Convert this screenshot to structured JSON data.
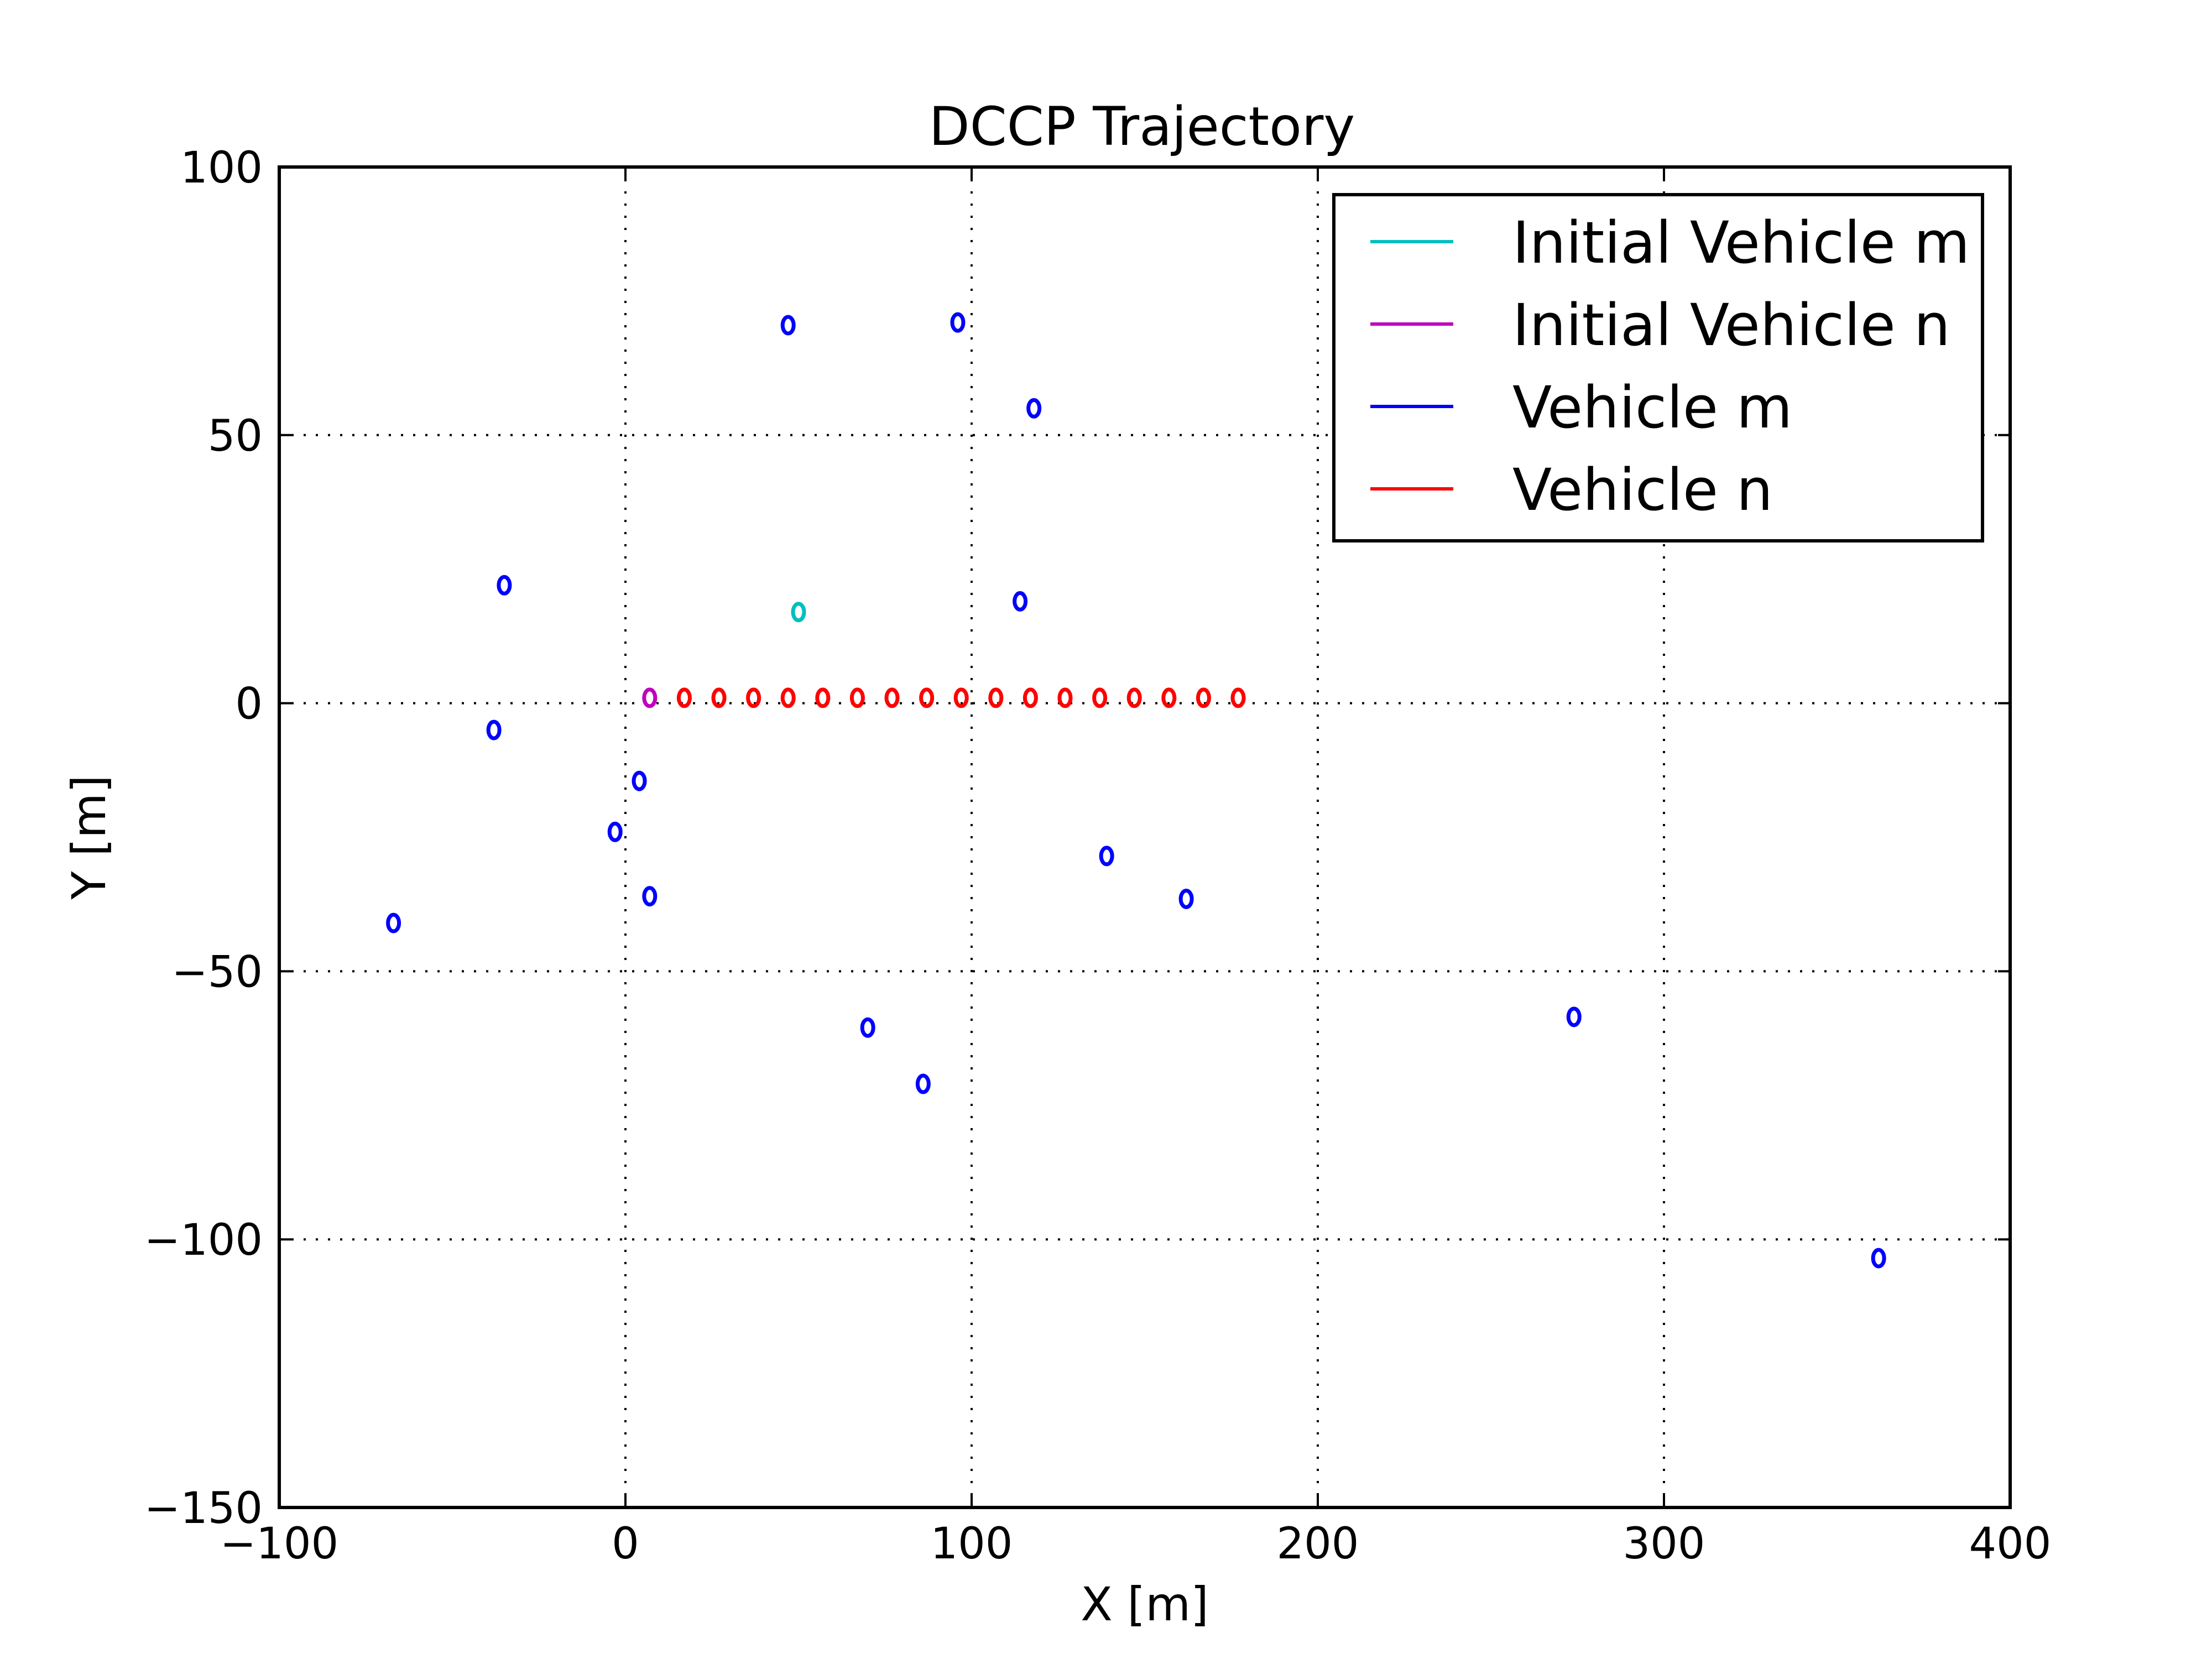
{
  "chart_data": {
    "type": "scatter",
    "title": "DCCP Trajectory",
    "xlabel": "X [m]",
    "ylabel": "Y [m]",
    "xlim": [
      -100,
      400
    ],
    "ylim": [
      -150,
      100
    ],
    "xticks": [
      -100,
      0,
      100,
      200,
      300,
      400
    ],
    "yticks": [
      -150,
      -100,
      -50,
      0,
      50,
      100
    ],
    "xtick_labels": [
      "−100",
      "0",
      "100",
      "200",
      "300",
      "400"
    ],
    "ytick_labels": [
      "−150",
      "−100",
      "−50",
      "0",
      "50",
      "100"
    ],
    "grid": true,
    "legend_position": "top-right",
    "marker": "o",
    "series": [
      {
        "name": "Initial Vehicle m",
        "color": "#00bfbf",
        "x": [
          50
        ],
        "y": [
          17
        ]
      },
      {
        "name": "Initial Vehicle n",
        "color": "#bf00bf",
        "x": [
          7
        ],
        "y": [
          1
        ]
      },
      {
        "name": "Vehicle m",
        "color": "#0000ff",
        "x": [
          47,
          96,
          118,
          -35,
          114,
          -38,
          4,
          -3,
          7,
          -67,
          139,
          162,
          70,
          86,
          274,
          362
        ],
        "y": [
          70.5,
          71,
          55,
          22,
          19,
          -5,
          -14.5,
          -24,
          -36,
          -41,
          -28.5,
          -36.5,
          -60.5,
          -71,
          -58.5,
          -103.5
        ]
      },
      {
        "name": "Vehicle n",
        "color": "#ff0000",
        "x": [
          17,
          27,
          37,
          47,
          57,
          67,
          77,
          87,
          97,
          107,
          117,
          127,
          137,
          147,
          157,
          167,
          177
        ],
        "y": [
          1,
          1,
          1,
          1,
          1,
          1,
          1,
          1,
          1,
          1,
          1,
          1,
          1,
          1,
          1,
          1,
          1
        ]
      }
    ]
  }
}
